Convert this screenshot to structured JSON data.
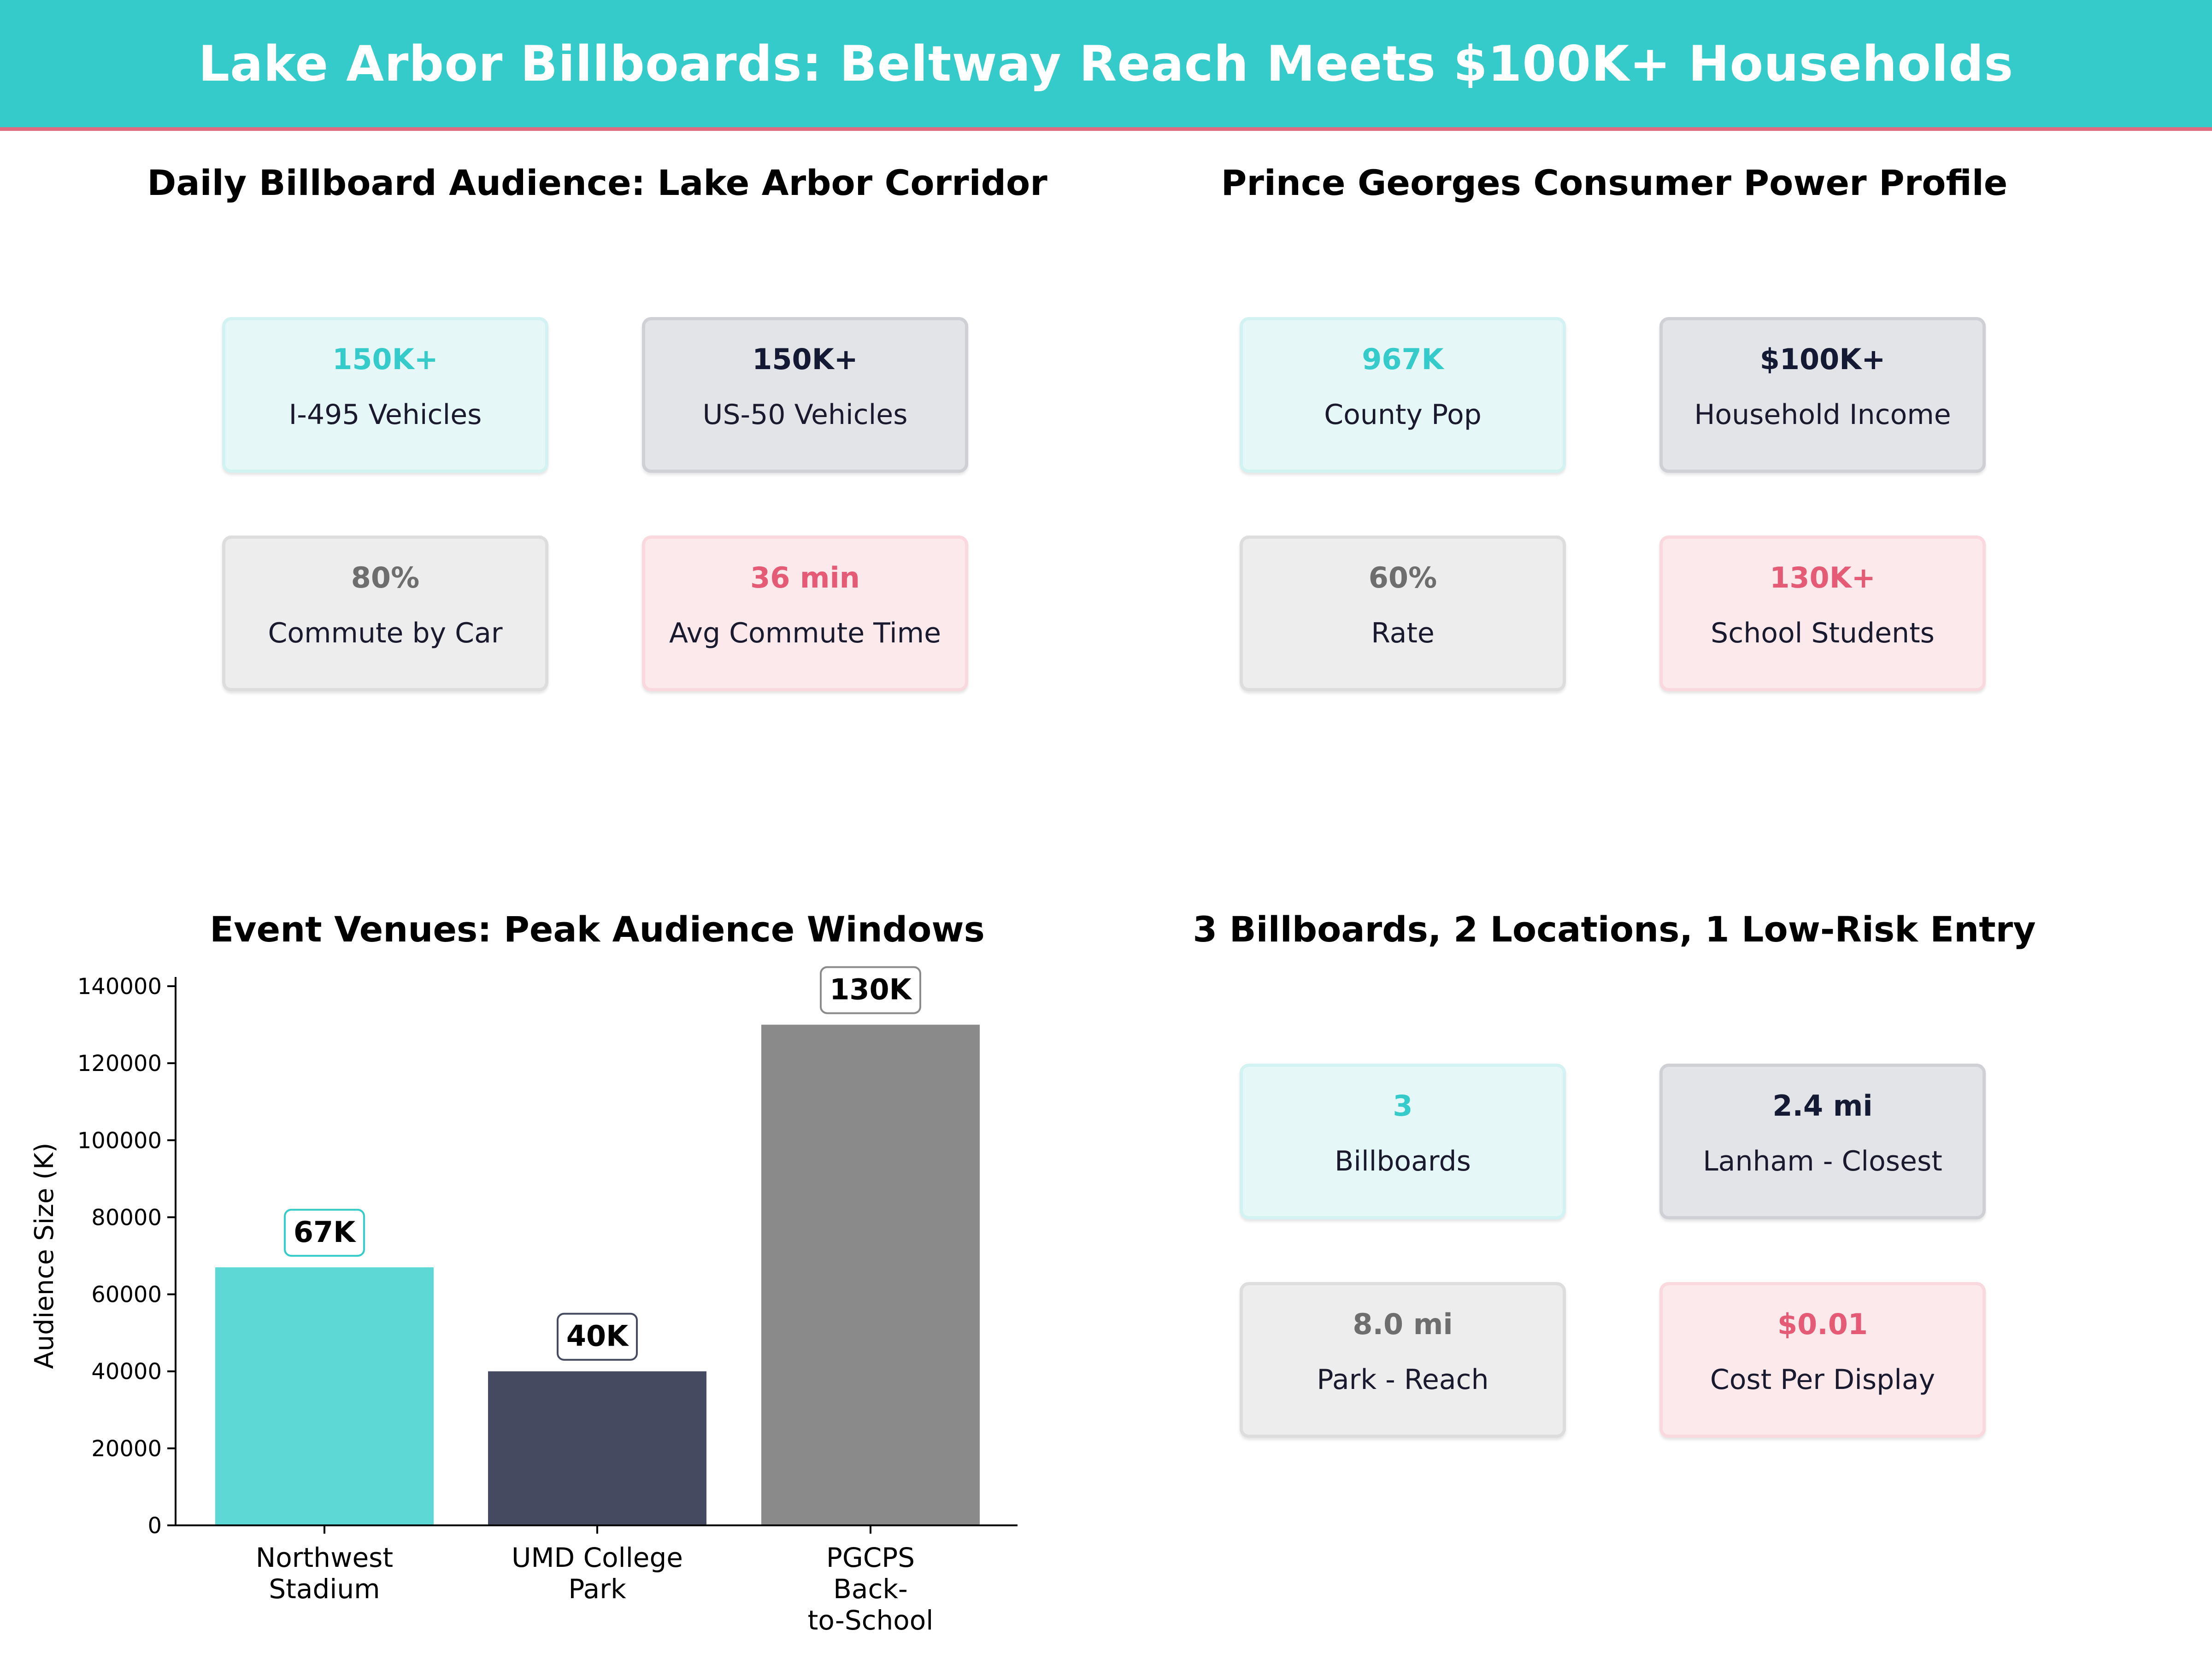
{
  "header": {
    "title": "Lake Arbor Billboards: Beltway Reach Meets $100K+ Households"
  },
  "panels": {
    "audience": {
      "title": "Daily Billboard Audience: Lake Arbor Corridor",
      "cards": [
        {
          "value": "150K+",
          "label": "I-495  Vehicles"
        },
        {
          "value": "150K+",
          "label": "US-50  Vehicles"
        },
        {
          "value": "80%",
          "label": "Commute by Car"
        },
        {
          "value": "36 min",
          "label": "Avg Commute Time"
        }
      ]
    },
    "consumer": {
      "title": "Prince Georges Consumer Power Profile",
      "cards": [
        {
          "value": "967K",
          "label": "County Pop"
        },
        {
          "value": "$100K+",
          "label": "Household Income"
        },
        {
          "value": "60%",
          "label": "Rate"
        },
        {
          "value": "130K+",
          "label": "School Students"
        }
      ]
    },
    "venues": {
      "title": "Event Venues: Peak Audience Windows"
    },
    "entry": {
      "title": "3 Billboards, 2 Locations, 1 Low-Risk Entry",
      "cards": [
        {
          "value": "3",
          "label": "Billboards"
        },
        {
          "value": "2.4 mi",
          "label": "Lanham - Closest"
        },
        {
          "value": "8.0 mi",
          "label": "Park - Reach"
        },
        {
          "value": "$0.01",
          "label": "Cost Per Display"
        }
      ]
    }
  },
  "colors": {
    "teal": "#36CBCB",
    "navy": "#141A33",
    "grey": "#6E6E6E",
    "pink": "#E55A75",
    "banner_border": "#E06A80"
  },
  "chart_data": {
    "type": "bar",
    "title": "Event Venues: Peak Audience Windows",
    "categories": [
      [
        "Northwest",
        "Stadium"
      ],
      [
        "UMD College",
        "Park"
      ],
      [
        "PGCPS",
        "Back-",
        "to-School"
      ]
    ],
    "values": [
      67000,
      40000,
      130000
    ],
    "data_labels": [
      "67K",
      "40K",
      "130K"
    ],
    "bar_colors": [
      "#5ED8D5",
      "#454A61",
      "#8A8A8A"
    ],
    "label_border_colors": [
      "#36CBCB",
      "#454A61",
      "#8A8A8A"
    ],
    "ylabel": "Audience Size (K)",
    "xlabel": "",
    "ylim": [
      0,
      140000
    ],
    "yticks": [
      0,
      20000,
      40000,
      60000,
      80000,
      100000,
      120000,
      140000
    ],
    "grid": false
  }
}
